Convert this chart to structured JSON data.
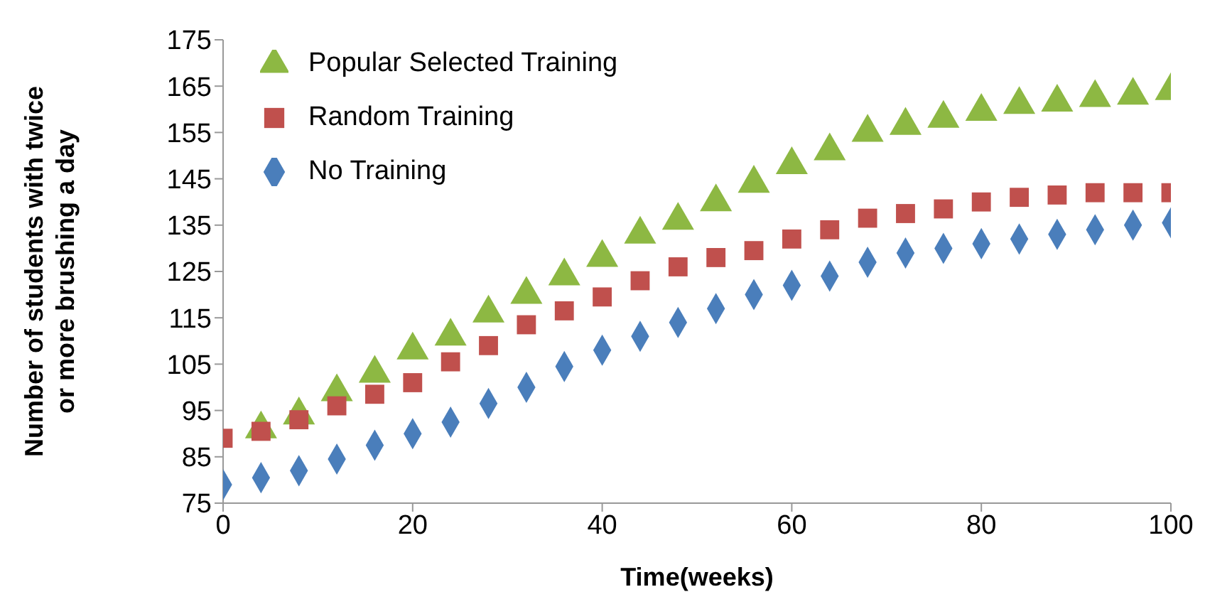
{
  "chart_data": {
    "type": "scatter",
    "xlabel": "Time(weeks)",
    "ylabel": "Number of students with twice\nor more brushing a day",
    "x": [
      0,
      4,
      8,
      12,
      16,
      20,
      24,
      28,
      32,
      36,
      40,
      44,
      48,
      52,
      56,
      60,
      64,
      68,
      72,
      76,
      80,
      84,
      88,
      92,
      96,
      100
    ],
    "xlim": [
      0,
      100
    ],
    "xticks": [
      0,
      20,
      40,
      60,
      80,
      100
    ],
    "ylim": [
      75,
      175
    ],
    "yticks": [
      75,
      85,
      95,
      105,
      115,
      125,
      135,
      145,
      155,
      165,
      175
    ],
    "grid": false,
    "legend": "top left",
    "series": [
      {
        "name": "Popular Selected Training",
        "color": "#8db843",
        "marker": "triangle",
        "values": [
          null,
          91,
          94,
          99,
          103,
          108,
          111,
          116,
          120,
          124,
          128,
          133,
          136,
          140,
          144,
          148,
          151,
          155,
          156.5,
          158,
          159.5,
          161,
          161.5,
          162.5,
          163,
          164
        ]
      },
      {
        "name": "Random Training",
        "color": "#c0504d",
        "marker": "square",
        "values": [
          89,
          90.5,
          93,
          96,
          98.5,
          101,
          105.5,
          109,
          113.5,
          116.5,
          119.5,
          123,
          126,
          128,
          129.5,
          132,
          134,
          136.5,
          137.5,
          138.5,
          140,
          141,
          141.5,
          142,
          142,
          142
        ]
      },
      {
        "name": "No Training",
        "color": "#4a7ebb",
        "marker": "diamond",
        "values": [
          79,
          80.5,
          82,
          84.5,
          87.5,
          90,
          92.5,
          96.5,
          100,
          104.5,
          108,
          111,
          114,
          117,
          120,
          122,
          124,
          127,
          129,
          130,
          131,
          132,
          133,
          134,
          135,
          135.5
        ]
      }
    ]
  }
}
